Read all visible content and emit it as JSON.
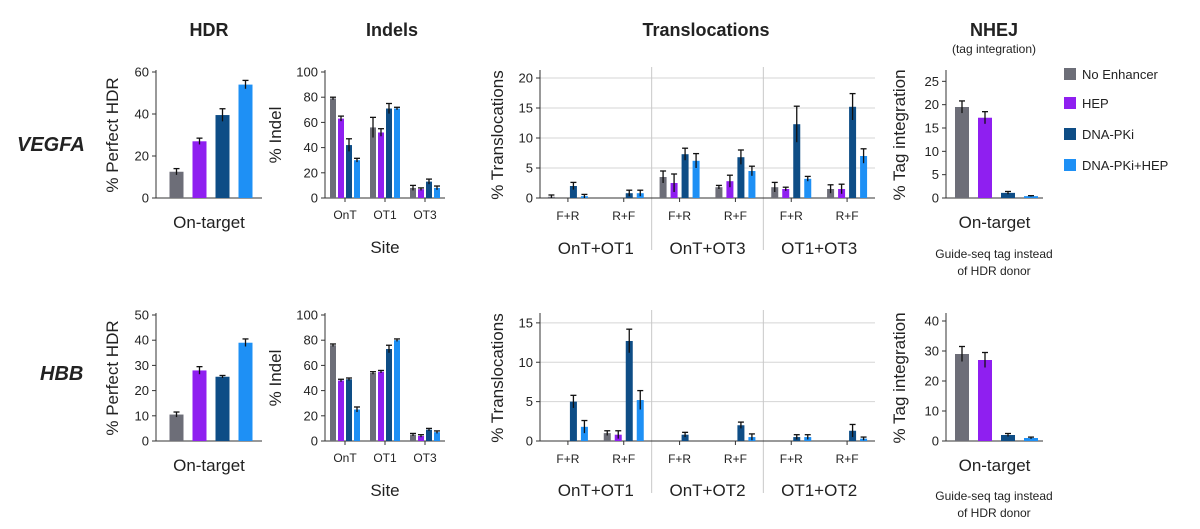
{
  "figure": {
    "column_titles": [
      "HDR",
      "Indels",
      "Translocations",
      "NHEJ"
    ],
    "nhej_subtitle": "(tag integration)",
    "row_labels": [
      "VEGFA",
      "HBB"
    ],
    "nhej_note_line1": "Guide-seq tag instead",
    "nhej_note_line2": "of HDR donor"
  },
  "legend": {
    "items": [
      {
        "label": "No Enhancer",
        "color": "#6d6e78"
      },
      {
        "label": "HEP",
        "color": "#8f1ff0"
      },
      {
        "label": "DNA-PKi",
        "color": "#0e4d86"
      },
      {
        "label": "DNA-PKi+HEP",
        "color": "#1e90f5"
      }
    ]
  },
  "chart_data": [
    {
      "id": "vegfa-hdr",
      "type": "bar",
      "row": "VEGFA",
      "panel": "HDR",
      "ylabel": "% Perfect HDR",
      "ylim": [
        0,
        60
      ],
      "yticks": [
        0,
        20,
        40,
        60
      ],
      "groups": [
        {
          "label": "On-target",
          "values": [
            12.5,
            27,
            39.5,
            54
          ],
          "errors": [
            1.5,
            1.5,
            3,
            2
          ]
        }
      ]
    },
    {
      "id": "vegfa-indel",
      "type": "bar",
      "row": "VEGFA",
      "panel": "Indels",
      "ylabel": "% Indel",
      "xlabel": "Site",
      "ylim": [
        0,
        100
      ],
      "yticks": [
        0,
        20,
        40,
        60,
        80,
        100
      ],
      "groups": [
        {
          "label": "OnT",
          "values": [
            79,
            63,
            42,
            30
          ],
          "errors": [
            1,
            2,
            5,
            1.5
          ]
        },
        {
          "label": "OT1",
          "values": [
            56,
            52,
            71,
            71
          ],
          "errors": [
            8,
            3,
            4,
            1
          ]
        },
        {
          "label": "OT3",
          "values": [
            8,
            7,
            13,
            8
          ],
          "errors": [
            2,
            1,
            2,
            1.5
          ]
        }
      ]
    },
    {
      "id": "vegfa-transloc",
      "type": "bar",
      "row": "VEGFA",
      "panel": "Translocations",
      "ylabel": "% Translocations",
      "ylim": [
        0,
        21
      ],
      "yticks": [
        0,
        5,
        10,
        15,
        20
      ],
      "sections": [
        "OnT+OT1",
        "OnT+OT3",
        "OT1+OT3"
      ],
      "groups": [
        {
          "label": "F+R",
          "values": [
            0.2,
            0,
            2,
            0.3
          ],
          "errors": [
            0.3,
            0,
            0.6,
            0.3
          ]
        },
        {
          "label": "R+F",
          "values": [
            0,
            0,
            0.8,
            0.8
          ],
          "errors": [
            0,
            0,
            0.5,
            0.5
          ]
        },
        {
          "label": "F+R",
          "values": [
            3.5,
            2.5,
            7.3,
            6.2
          ],
          "errors": [
            1,
            1.5,
            1,
            1.2
          ]
        },
        {
          "label": "R+F",
          "values": [
            1.8,
            2.8,
            6.8,
            4.5
          ],
          "errors": [
            0.3,
            1,
            1.2,
            0.8
          ]
        },
        {
          "label": "F+R",
          "values": [
            1.8,
            1.5,
            12.3,
            3.2
          ],
          "errors": [
            0.8,
            0.3,
            3,
            0.4
          ]
        },
        {
          "label": "R+F",
          "values": [
            1.5,
            1.5,
            15.2,
            7
          ],
          "errors": [
            0.7,
            0.8,
            2.2,
            1.2
          ]
        }
      ]
    },
    {
      "id": "vegfa-nhej",
      "type": "bar",
      "row": "VEGFA",
      "panel": "NHEJ",
      "ylabel": "% Tag integration",
      "ylim": [
        0,
        27
      ],
      "yticks": [
        0,
        5,
        10,
        15,
        20,
        25
      ],
      "groups": [
        {
          "label": "On-target",
          "values": [
            19.5,
            17.2,
            1.1,
            0.4
          ],
          "errors": [
            1.3,
            1.3,
            0.3,
            0.1
          ]
        }
      ]
    },
    {
      "id": "hbb-hdr",
      "type": "bar",
      "row": "HBB",
      "panel": "HDR",
      "ylabel": "% Perfect HDR",
      "ylim": [
        0,
        50
      ],
      "yticks": [
        0,
        10,
        20,
        30,
        40,
        50
      ],
      "groups": [
        {
          "label": "On-target",
          "values": [
            10.5,
            28,
            25.5,
            39
          ],
          "errors": [
            1,
            1.5,
            0.5,
            1.5
          ]
        }
      ]
    },
    {
      "id": "hbb-indel",
      "type": "bar",
      "row": "HBB",
      "panel": "Indels",
      "ylabel": "% Indel",
      "xlabel": "Site",
      "ylim": [
        0,
        100
      ],
      "yticks": [
        0,
        20,
        40,
        60,
        80,
        100
      ],
      "groups": [
        {
          "label": "OnT",
          "values": [
            76,
            48,
            49,
            25
          ],
          "errors": [
            1,
            1,
            1,
            2
          ]
        },
        {
          "label": "OT1",
          "values": [
            54,
            55,
            73,
            80
          ],
          "errors": [
            1,
            1,
            3,
            1
          ]
        },
        {
          "label": "OT3",
          "values": [
            5,
            4,
            9,
            7
          ],
          "errors": [
            1,
            1,
            1,
            1
          ]
        }
      ]
    },
    {
      "id": "hbb-transloc",
      "type": "bar",
      "row": "HBB",
      "panel": "Translocations",
      "ylabel": "% Translocations",
      "ylim": [
        0,
        16
      ],
      "yticks": [
        0,
        5,
        10,
        15
      ],
      "sections": [
        "OnT+OT1",
        "OnT+OT2",
        "OT1+OT2"
      ],
      "groups": [
        {
          "label": "F+R",
          "values": [
            0,
            0,
            5,
            1.8
          ],
          "errors": [
            0,
            0,
            0.8,
            0.8
          ]
        },
        {
          "label": "R+F",
          "values": [
            1,
            0.8,
            12.7,
            5.2
          ],
          "errors": [
            0.3,
            0.5,
            1.5,
            1.2
          ]
        },
        {
          "label": "F+R",
          "values": [
            0,
            0,
            0.8,
            0
          ],
          "errors": [
            0,
            0,
            0.3,
            0
          ]
        },
        {
          "label": "R+F",
          "values": [
            0,
            0,
            2,
            0.5
          ],
          "errors": [
            0,
            0,
            0.4,
            0.4
          ]
        },
        {
          "label": "F+R",
          "values": [
            0,
            0,
            0.5,
            0.5
          ],
          "errors": [
            0,
            0,
            0.3,
            0.3
          ]
        },
        {
          "label": "R+F",
          "values": [
            0,
            0,
            1.3,
            0.3
          ],
          "errors": [
            0,
            0,
            0.8,
            0.2
          ]
        }
      ]
    },
    {
      "id": "hbb-nhej",
      "type": "bar",
      "row": "HBB",
      "panel": "NHEJ",
      "ylabel": "% Tag integration",
      "ylim": [
        0,
        42
      ],
      "yticks": [
        0,
        10,
        20,
        30,
        40
      ],
      "groups": [
        {
          "label": "On-target",
          "values": [
            29,
            27,
            2,
            1
          ],
          "errors": [
            2.5,
            2.5,
            0.5,
            0.3
          ]
        }
      ]
    }
  ]
}
